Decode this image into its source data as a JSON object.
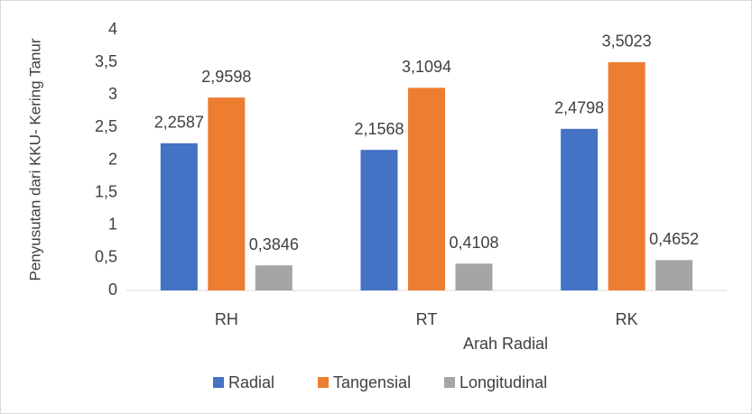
{
  "chart_data": {
    "type": "bar",
    "categories": [
      "RH",
      "RT",
      "RK"
    ],
    "x_label": "Arah Radial",
    "y_label": "Penyusutan dari KKU- Kering Tanur",
    "series": [
      {
        "name": "Radial",
        "color": "#4472c4",
        "values": [
          2.2587,
          2.1568,
          2.4798
        ],
        "value_labels": [
          "2,2587",
          "2,1568",
          "2,4798"
        ]
      },
      {
        "name": "Tangensial",
        "color": "#ed7d31",
        "values": [
          2.9598,
          3.1094,
          3.5023
        ],
        "value_labels": [
          "2,9598",
          "3,1094",
          "3,5023"
        ]
      },
      {
        "name": "Longitudinal",
        "color": "#a5a5a5",
        "values": [
          0.3846,
          0.4108,
          0.4652
        ],
        "value_labels": [
          "0,3846",
          "0,4108",
          "0,4652"
        ]
      }
    ],
    "ylim": [
      0,
      4
    ],
    "yticks": [
      0,
      {
        "value": 0.5,
        "label": "0,5"
      },
      1,
      {
        "value": 1.5,
        "label": "1,5"
      },
      2,
      {
        "value": 2.5,
        "label": "2,5"
      },
      3,
      {
        "value": 3.5,
        "label": "3,5"
      },
      4
    ],
    "grid": false,
    "legend": "bottom"
  }
}
